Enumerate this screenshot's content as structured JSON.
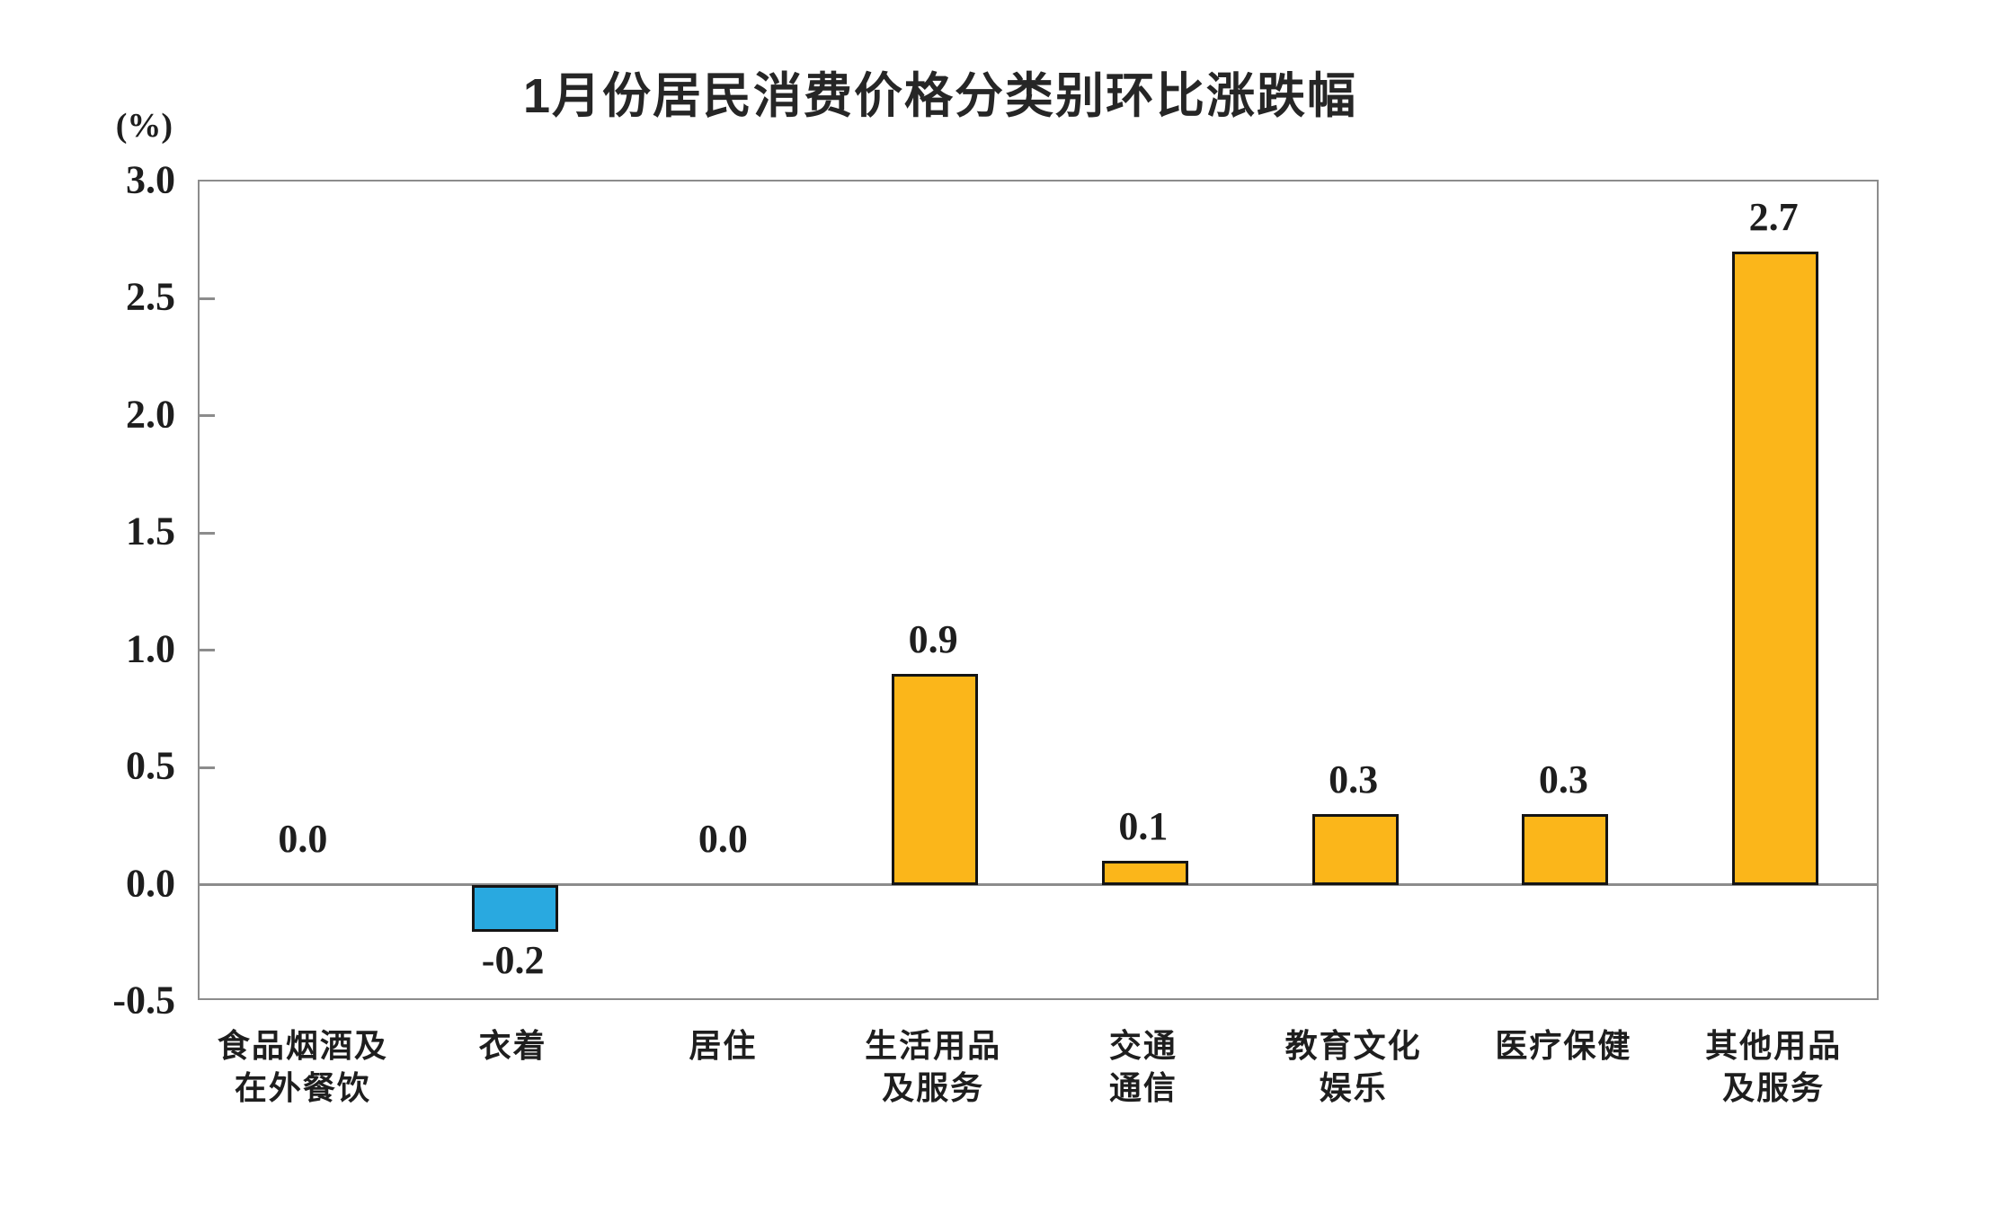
{
  "title": "1月份居民消费价格分类别环比涨跌幅",
  "unit_label": "(%)",
  "colors": {
    "positive_bar": "#FBB61A",
    "negative_bar": "#29A9E0",
    "bar_border": "#141414",
    "axis": "#8C8C8C",
    "text": "#1E1E1E",
    "background": "#FFFFFF"
  },
  "chart_data": {
    "type": "bar",
    "title": "1月份居民消费价格分类别环比涨跌幅",
    "ylabel": "(%)",
    "categories": [
      "食品烟酒及\n在外餐饮",
      "衣着",
      "居住",
      "生活用品\n及服务",
      "交通\n通信",
      "教育文化\n娱乐",
      "医疗保健",
      "其他用品\n及服务"
    ],
    "values": [
      0.0,
      -0.2,
      0.0,
      0.9,
      0.1,
      0.3,
      0.3,
      2.7
    ],
    "value_labels": [
      "0.0",
      "-0.2",
      "0.0",
      "0.9",
      "0.1",
      "0.3",
      "0.3",
      "2.7"
    ],
    "ylim": [
      -0.5,
      3.0
    ],
    "yticks": [
      3.0,
      2.5,
      2.0,
      1.5,
      1.0,
      0.5,
      0.0,
      -0.5
    ],
    "ytick_labels": [
      "3.0",
      "2.5",
      "2.0",
      "1.5",
      "1.0",
      "0.5",
      "0.0",
      "-0.5"
    ],
    "grid": false,
    "legend": null,
    "zero_line": true,
    "bar_color_rule": "negative values blue, others gold"
  }
}
